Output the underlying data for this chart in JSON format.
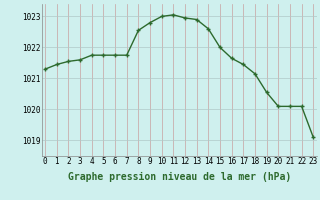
{
  "x": [
    0,
    1,
    2,
    3,
    4,
    5,
    6,
    7,
    8,
    9,
    10,
    11,
    12,
    13,
    14,
    15,
    16,
    17,
    18,
    19,
    20,
    21,
    22,
    23
  ],
  "y": [
    1021.3,
    1021.45,
    1021.55,
    1021.6,
    1021.75,
    1021.75,
    1021.75,
    1021.75,
    1022.55,
    1022.8,
    1023.0,
    1023.05,
    1022.95,
    1022.9,
    1022.6,
    1022.0,
    1021.65,
    1021.45,
    1021.15,
    1020.55,
    1020.1,
    1020.1,
    1020.1,
    1019.1
  ],
  "line_color": "#2d6a2d",
  "marker": "+",
  "bg_color": "#cff0ee",
  "grid_color_v": "#c8a0a0",
  "grid_color_h": "#b0c8c8",
  "xlabel": "Graphe pression niveau de la mer (hPa)",
  "yticks": [
    1019,
    1020,
    1021,
    1022,
    1023
  ],
  "xticks": [
    0,
    1,
    2,
    3,
    4,
    5,
    6,
    7,
    8,
    9,
    10,
    11,
    12,
    13,
    14,
    15,
    16,
    17,
    18,
    19,
    20,
    21,
    22,
    23
  ],
  "ylim": [
    1018.5,
    1023.4
  ],
  "xlim": [
    -0.3,
    23.3
  ],
  "tick_fontsize": 5.5,
  "label_fontsize": 7.0
}
